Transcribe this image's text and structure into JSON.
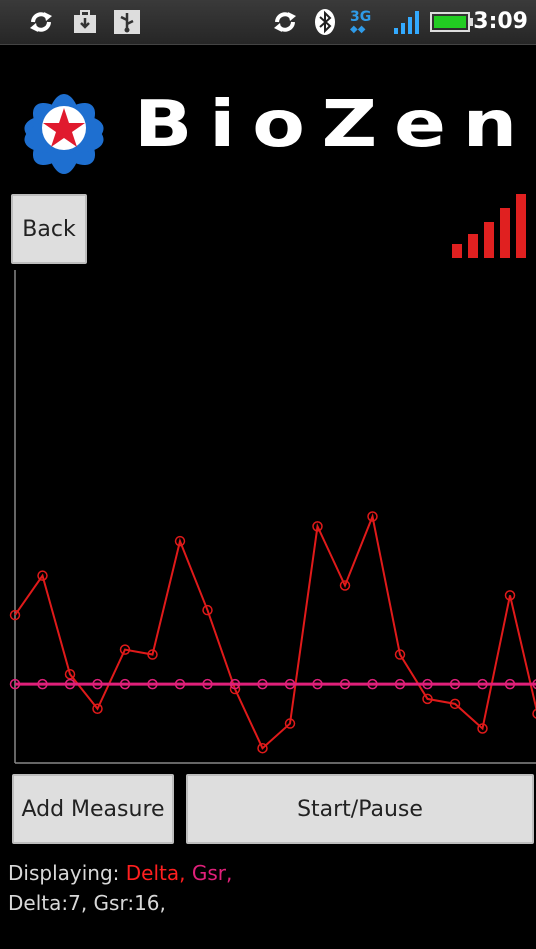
{
  "status_bar": {
    "left_icons": [
      "sync-icon",
      "briefcase-download-icon",
      "usb-icon"
    ],
    "right_icons": [
      "sync-icon",
      "bluetooth-icon",
      "3g-icon",
      "signal-icon",
      "battery-icon"
    ],
    "network": "3G",
    "time": "3:09",
    "colors": {
      "battery": "#22cc22",
      "signal": "#33aaff"
    }
  },
  "header": {
    "logo_text": "BioZen",
    "logo_icon": "lotus-star-icon",
    "colors": {
      "lotus": "#1e6fd0",
      "star": "#e01a2e"
    }
  },
  "controls": {
    "back_label": "Back",
    "add_measure_label": "Add Measure",
    "start_pause_label": "Start/Pause",
    "signal_strength_icon": "signal-strength-icon",
    "signal_color": "#e02020"
  },
  "info": {
    "displaying_label": "Displaying: ",
    "displaying_series": [
      "Delta,",
      "Gsr,"
    ],
    "values_text": "Delta:7, Gsr:16,"
  },
  "chart_data": {
    "type": "line",
    "grid": false,
    "x": [
      0,
      1,
      2,
      3,
      4,
      5,
      6,
      7,
      8,
      9,
      10,
      11,
      12,
      13,
      14,
      15,
      16,
      17,
      18,
      19
    ],
    "ylim": [
      0,
      100
    ],
    "series": [
      {
        "color": "#e01a1a",
        "values": [
          30,
          38,
          18,
          11,
          23,
          22,
          45,
          31,
          15,
          3,
          8,
          48,
          36,
          50,
          22,
          13,
          12,
          7,
          34,
          10
        ]
      },
      {
        "color": "#e0207a",
        "values": [
          16,
          16,
          16,
          16,
          16,
          16,
          16,
          16,
          16,
          16,
          16,
          16,
          16,
          16,
          16,
          16,
          16,
          16,
          16,
          16
        ]
      }
    ]
  }
}
